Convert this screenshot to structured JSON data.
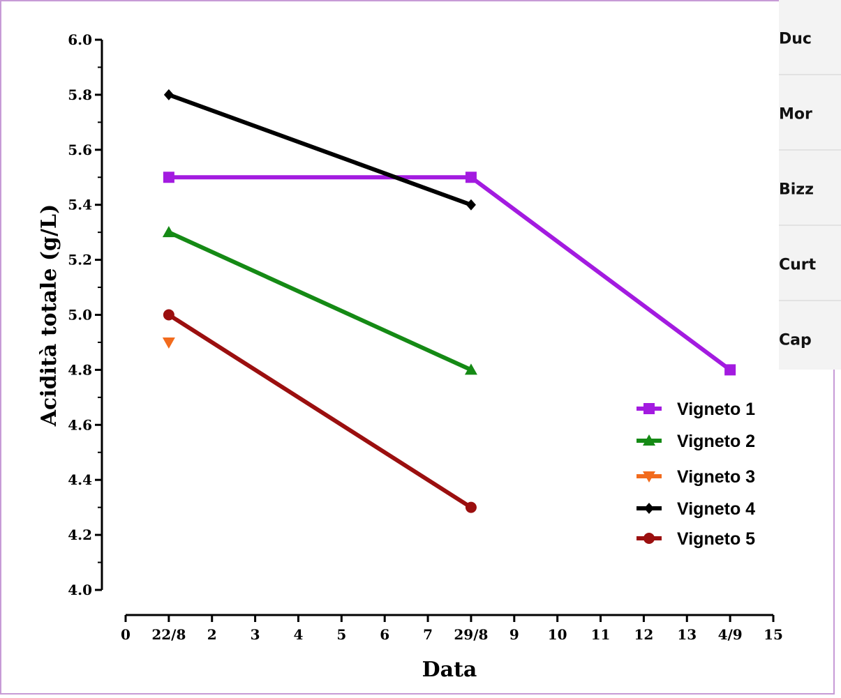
{
  "side_panel": {
    "rows": [
      "Duc",
      "Mor",
      "Bizz",
      "Curt",
      "Cap"
    ]
  },
  "chart_data": {
    "type": "line",
    "xlabel": "Data",
    "ylabel": "Acidità totale (g/L)",
    "xlim": [
      0,
      15
    ],
    "ylim": [
      4.0,
      6.0
    ],
    "x_ticks": [
      {
        "x": 0,
        "label": "0"
      },
      {
        "x": 1,
        "label": "22/8"
      },
      {
        "x": 2,
        "label": "2"
      },
      {
        "x": 3,
        "label": "3"
      },
      {
        "x": 4,
        "label": "4"
      },
      {
        "x": 5,
        "label": "5"
      },
      {
        "x": 6,
        "label": "6"
      },
      {
        "x": 7,
        "label": "7"
      },
      {
        "x": 8,
        "label": "29/8"
      },
      {
        "x": 9,
        "label": "9"
      },
      {
        "x": 10,
        "label": "10"
      },
      {
        "x": 11,
        "label": "11"
      },
      {
        "x": 12,
        "label": "12"
      },
      {
        "x": 13,
        "label": "13"
      },
      {
        "x": 14,
        "label": "4/9"
      },
      {
        "x": 15,
        "label": "15"
      }
    ],
    "y_ticks": [
      "4.0",
      "4.2",
      "4.4",
      "4.6",
      "4.8",
      "5.0",
      "5.2",
      "5.4",
      "5.6",
      "5.8",
      "6.0"
    ],
    "legend_position": "bottom-right",
    "grid": false,
    "series": [
      {
        "name": "Vigneto 1",
        "color": "#a31be0",
        "marker": "square",
        "points": [
          {
            "x": "22/8",
            "y": 5.5
          },
          {
            "x": "29/8",
            "y": 5.5
          },
          {
            "x": "4/9",
            "y": 4.8
          }
        ]
      },
      {
        "name": "Vigneto 2",
        "color": "#158a15",
        "marker": "triangle-up",
        "points": [
          {
            "x": "22/8",
            "y": 5.3
          },
          {
            "x": "29/8",
            "y": 4.8
          }
        ]
      },
      {
        "name": "Vigneto 3",
        "color": "#f26b1d",
        "marker": "triangle-down",
        "points": [
          {
            "x": "22/8",
            "y": 4.9
          }
        ]
      },
      {
        "name": "Vigneto 4",
        "color": "#000000",
        "marker": "diamond",
        "points": [
          {
            "x": "22/8",
            "y": 5.8
          },
          {
            "x": "29/8",
            "y": 5.4
          }
        ]
      },
      {
        "name": "Vigneto 5",
        "color": "#9b0f0f",
        "marker": "circle",
        "points": [
          {
            "x": "22/8",
            "y": 5.0
          },
          {
            "x": "29/8",
            "y": 4.3
          }
        ]
      }
    ]
  }
}
